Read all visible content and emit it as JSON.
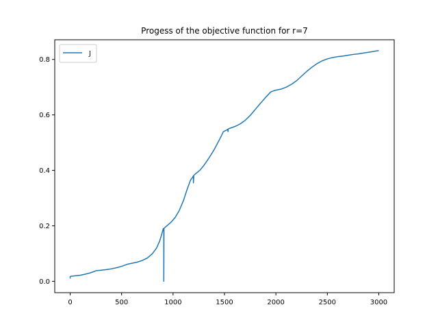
{
  "chart_data": {
    "type": "line",
    "title": "Progess of the objective function for r=7",
    "xlabel": "",
    "ylabel": "",
    "xlim": [
      -150,
      3150
    ],
    "ylim": [
      -0.041,
      0.871
    ],
    "xticks": [
      0,
      500,
      1000,
      1500,
      2000,
      2500,
      3000
    ],
    "yticks": [
      0.0,
      0.2,
      0.4,
      0.6,
      0.8
    ],
    "xtick_labels": [
      "0",
      "500",
      "1000",
      "1500",
      "2000",
      "2500",
      "3000"
    ],
    "ytick_labels": [
      "0.0",
      "0.2",
      "0.4",
      "0.6",
      "0.8"
    ],
    "grid": false,
    "legend": {
      "position": "top-left",
      "entries": [
        "J"
      ]
    },
    "colors": {
      "series": "#1f77b4",
      "axes": "#000000"
    },
    "series": [
      {
        "name": "J",
        "x": [
          0,
          0,
          5,
          50,
          100,
          150,
          200,
          250,
          300,
          350,
          400,
          450,
          500,
          560,
          600,
          650,
          700,
          750,
          800,
          840,
          870,
          890,
          905,
          910,
          910,
          912,
          915,
          940,
          980,
          1020,
          1060,
          1100,
          1140,
          1170,
          1190,
          1198,
          1198,
          1202,
          1202,
          1210,
          1260,
          1300,
          1350,
          1400,
          1450,
          1490,
          1520,
          1530,
          1535,
          1535,
          1540,
          1600,
          1650,
          1700,
          1750,
          1800,
          1850,
          1900,
          1950,
          1985,
          2050,
          2100,
          2150,
          2200,
          2250,
          2300,
          2350,
          2400,
          2450,
          2500,
          2540,
          2570,
          2600,
          2650,
          2700,
          2750,
          2800,
          2850,
          2900,
          2950,
          3000
        ],
        "y": [
          0.01,
          0.017,
          0.018,
          0.02,
          0.022,
          0.026,
          0.031,
          0.038,
          0.04,
          0.042,
          0.045,
          0.049,
          0.054,
          0.062,
          0.065,
          0.069,
          0.075,
          0.084,
          0.1,
          0.12,
          0.145,
          0.17,
          0.19,
          0.19,
          0.0,
          0.19,
          0.192,
          0.2,
          0.213,
          0.23,
          0.255,
          0.29,
          0.335,
          0.365,
          0.375,
          0.38,
          0.355,
          0.38,
          0.382,
          0.385,
          0.4,
          0.418,
          0.445,
          0.475,
          0.51,
          0.54,
          0.545,
          0.548,
          0.54,
          0.548,
          0.55,
          0.558,
          0.567,
          0.58,
          0.598,
          0.62,
          0.642,
          0.663,
          0.683,
          0.688,
          0.693,
          0.7,
          0.71,
          0.723,
          0.74,
          0.757,
          0.772,
          0.785,
          0.795,
          0.802,
          0.806,
          0.808,
          0.81,
          0.812,
          0.815,
          0.818,
          0.82,
          0.823,
          0.826,
          0.829,
          0.832
        ]
      }
    ]
  }
}
